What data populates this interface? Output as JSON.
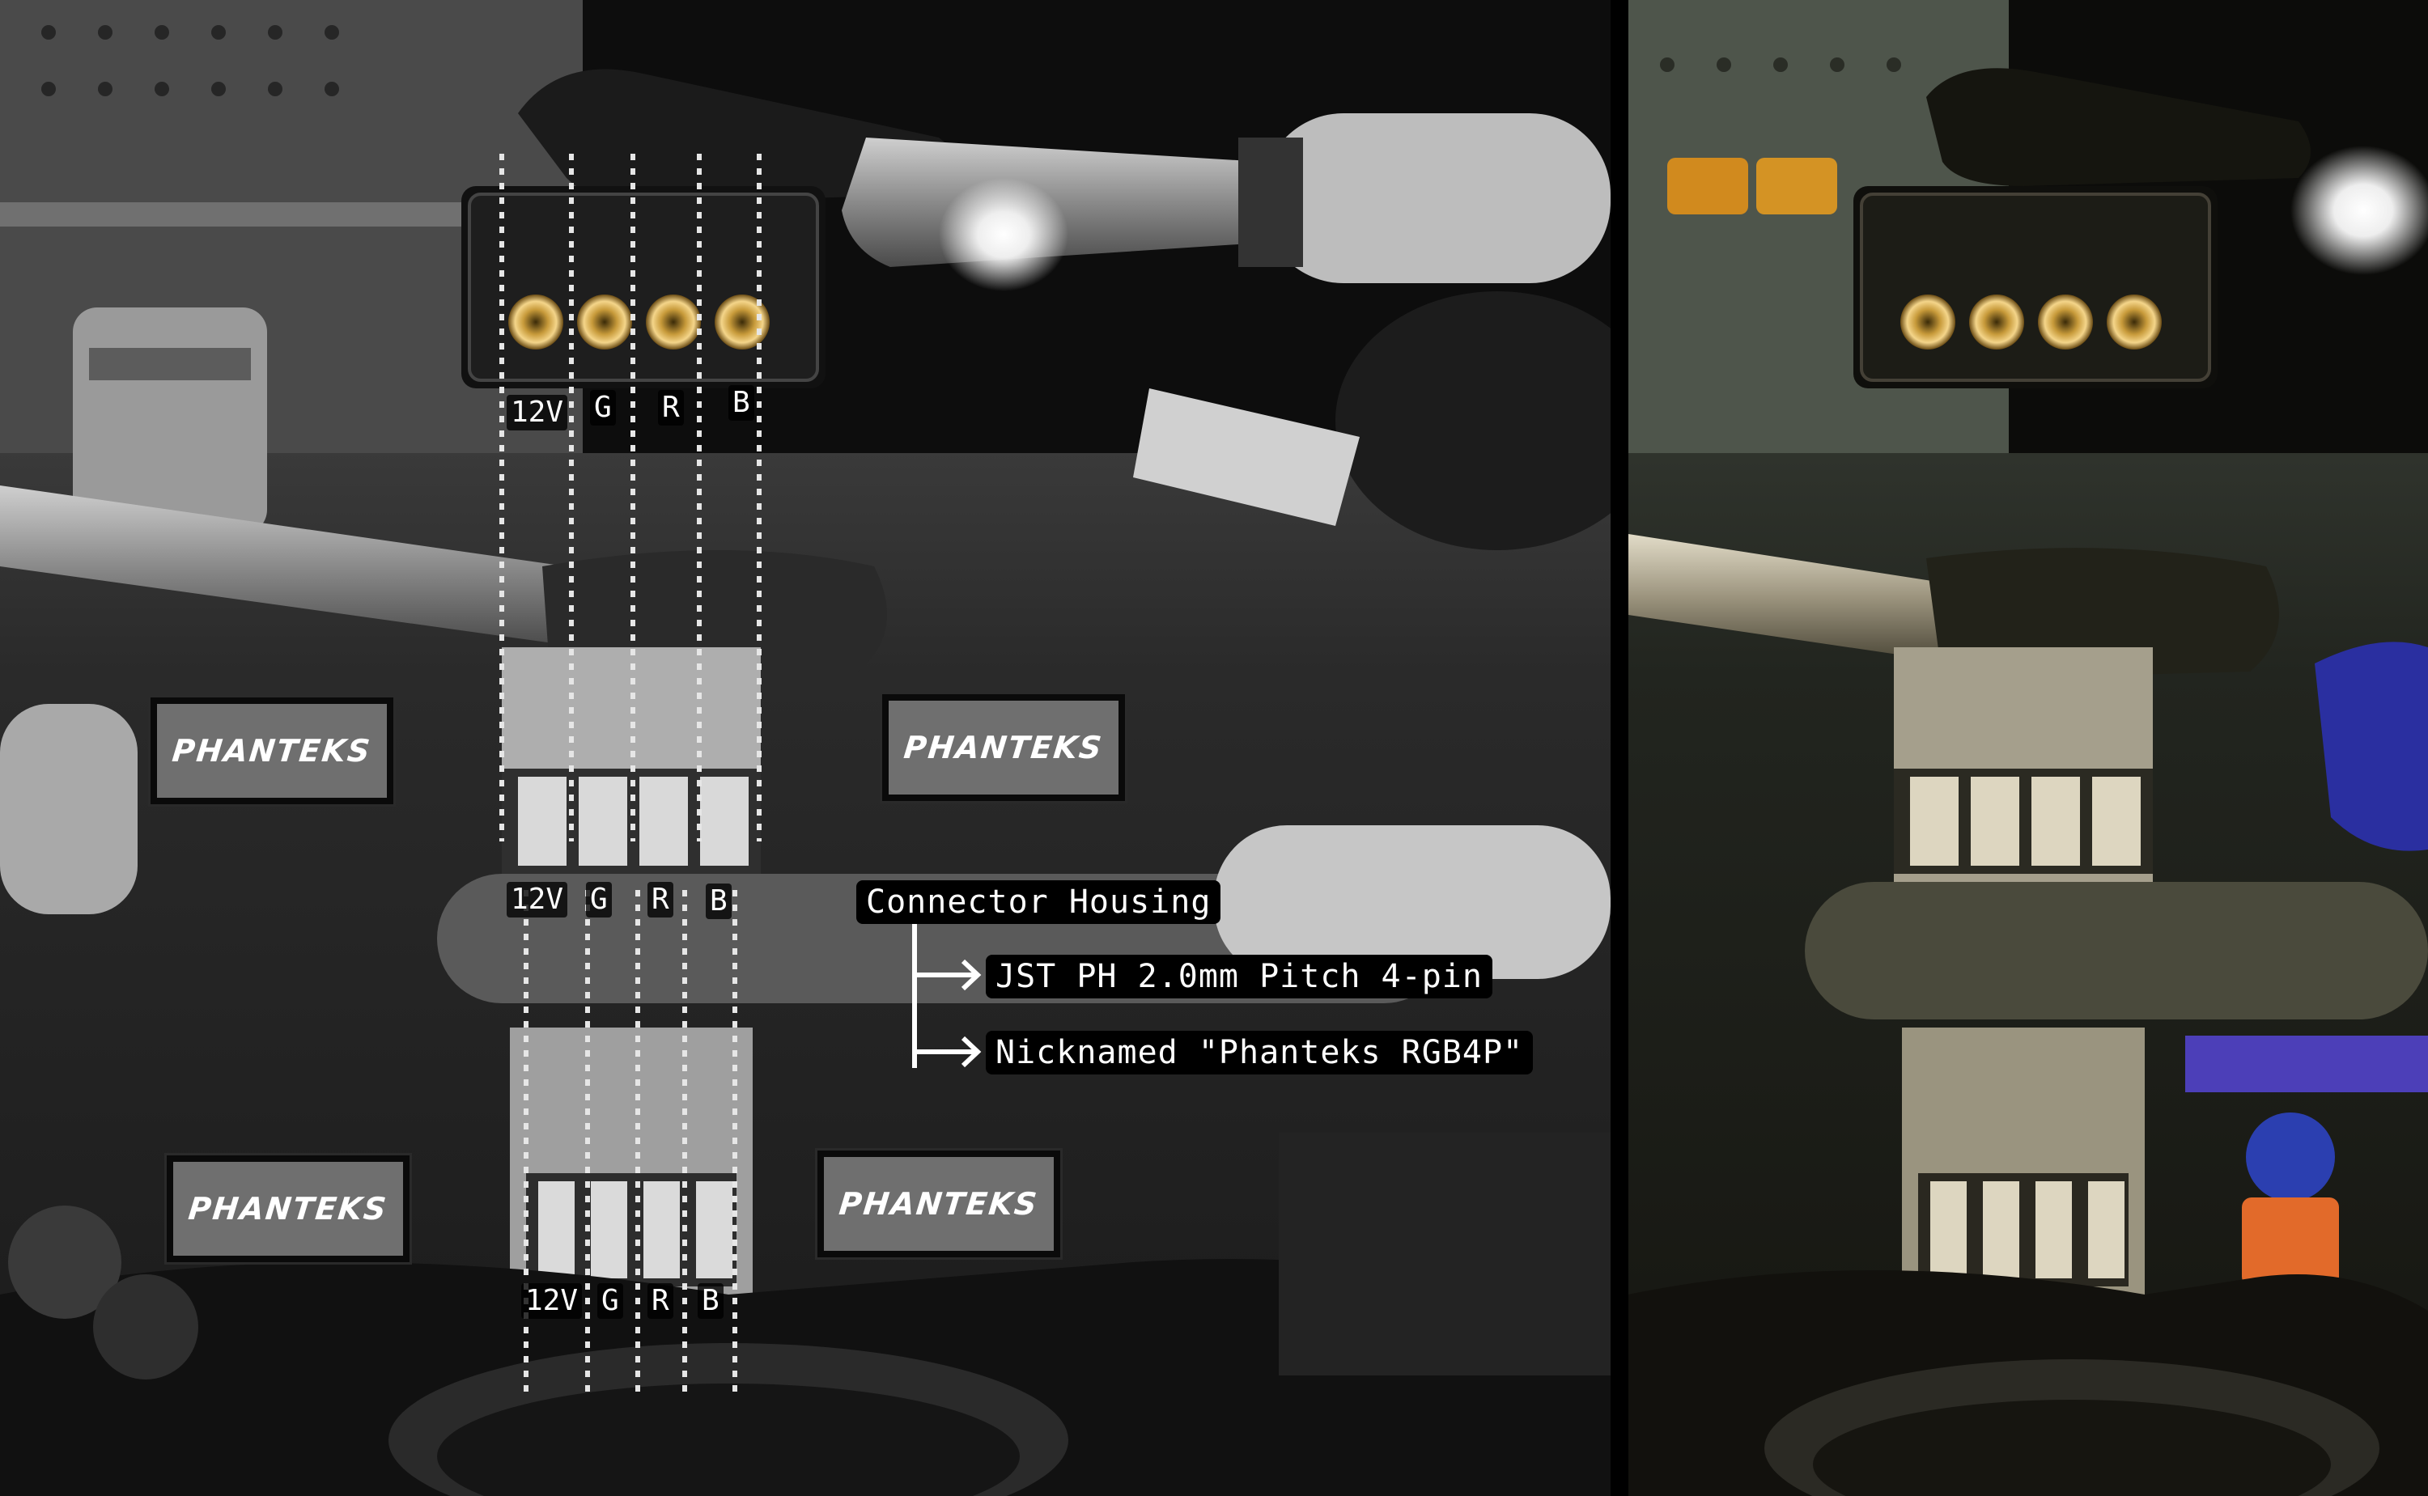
{
  "image": {
    "description_panels": [
      "annotated-left-grayscale",
      "original-color-right"
    ]
  },
  "logos": [
    {
      "text": "PHANTEKS"
    },
    {
      "text": "PHANTEKS"
    },
    {
      "text": "PHANTEKS"
    },
    {
      "text": "PHANTEKS"
    }
  ],
  "pin_rows": [
    {
      "pins": [
        "12V",
        "G",
        "R",
        "B"
      ]
    },
    {
      "pins": [
        "12V",
        "G",
        "R",
        "B"
      ]
    },
    {
      "pins": [
        "12V",
        "G",
        "R",
        "B"
      ]
    }
  ],
  "annotation": {
    "title": "Connector Housing",
    "item1": "JST PH 2.0mm Pitch 4-pin",
    "item2": "Nicknamed \"Phanteks RGB4P\""
  },
  "colors": {
    "logo_bg": "#6f6f6f",
    "text": "#ffffff",
    "divider": "#000000"
  }
}
